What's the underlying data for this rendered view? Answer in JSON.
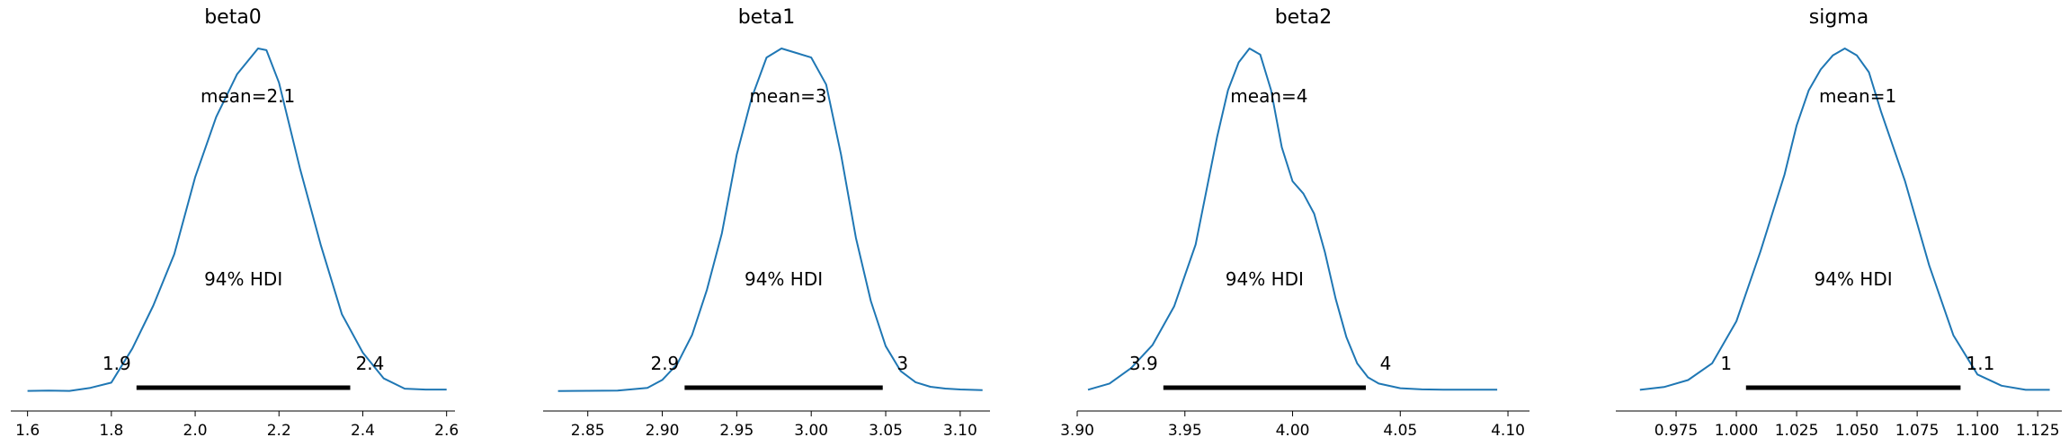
{
  "chart_data": [
    {
      "type": "line",
      "title": "beta0",
      "mean_label": "mean=2.1",
      "hdi_label": "94% HDI",
      "hdi": [
        1.86,
        2.37
      ],
      "hdi_labels": [
        "1.9",
        "2.4"
      ],
      "xlim": [
        1.56,
        2.62
      ],
      "ticks": [
        1.6,
        1.8,
        2.0,
        2.2,
        2.4,
        2.6
      ],
      "tick_labels": [
        "1.6",
        "1.8",
        "2.0",
        "2.2",
        "2.4",
        "2.6"
      ],
      "x": [
        1.6,
        1.65,
        1.7,
        1.75,
        1.8,
        1.85,
        1.9,
        1.95,
        2.0,
        2.05,
        2.1,
        2.15,
        2.17,
        2.2,
        2.25,
        2.3,
        2.35,
        2.4,
        2.45,
        2.5,
        2.55,
        2.6
      ],
      "density": [
        0.004,
        0.008,
        0.004,
        0.04,
        0.1,
        0.5,
        1.0,
        1.6,
        2.5,
        3.2,
        3.7,
        4.0,
        3.98,
        3.6,
        2.6,
        1.7,
        0.9,
        0.45,
        0.15,
        0.03,
        0.02,
        0.02
      ]
    },
    {
      "type": "line",
      "title": "beta1",
      "mean_label": "mean=3",
      "hdi_label": "94% HDI",
      "hdi": [
        2.915,
        3.048
      ],
      "hdi_labels": [
        "2.9",
        "3"
      ],
      "xlim": [
        2.82,
        3.12
      ],
      "ticks": [
        2.85,
        2.9,
        2.95,
        3.0,
        3.05,
        3.1
      ],
      "tick_labels": [
        "2.85",
        "2.90",
        "2.95",
        "3.00",
        "3.05",
        "3.10"
      ],
      "x": [
        2.83,
        2.85,
        2.87,
        2.89,
        2.9,
        2.91,
        2.92,
        2.93,
        2.94,
        2.95,
        2.96,
        2.97,
        2.98,
        2.99,
        3.0,
        3.01,
        3.02,
        3.03,
        3.04,
        3.05,
        3.06,
        3.07,
        3.08,
        3.09,
        3.1,
        3.115
      ],
      "density": [
        0.01,
        0.02,
        0.03,
        0.15,
        0.5,
        1.2,
        2.5,
        4.5,
        7.0,
        10.5,
        13.0,
        14.8,
        15.2,
        15.0,
        14.8,
        13.6,
        10.5,
        6.8,
        4.0,
        2.0,
        0.9,
        0.4,
        0.2,
        0.12,
        0.08,
        0.05
      ]
    },
    {
      "type": "line",
      "title": "beta2",
      "mean_label": "mean=4",
      "hdi_label": "94% HDI",
      "hdi": [
        3.94,
        4.034
      ],
      "hdi_labels": [
        "3.9",
        "4"
      ],
      "xlim": [
        3.9,
        4.11
      ],
      "ticks": [
        3.9,
        3.95,
        4.0,
        4.05,
        4.1
      ],
      "tick_labels": [
        "3.90",
        "3.95",
        "4.00",
        "4.05",
        "4.10"
      ],
      "x": [
        3.905,
        3.915,
        3.925,
        3.935,
        3.945,
        3.955,
        3.96,
        3.965,
        3.97,
        3.975,
        3.98,
        3.985,
        3.99,
        3.995,
        4.0,
        4.005,
        4.01,
        4.015,
        4.02,
        4.025,
        4.03,
        4.035,
        4.04,
        4.05,
        4.06,
        4.07,
        4.08,
        4.095
      ],
      "density": [
        0.1,
        0.5,
        1.5,
        3.0,
        5.5,
        9.5,
        13.0,
        16.5,
        19.5,
        21.3,
        22.2,
        21.8,
        19.5,
        15.8,
        13.6,
        12.8,
        11.5,
        9.0,
        6.0,
        3.5,
        1.8,
        0.9,
        0.5,
        0.2,
        0.12,
        0.1,
        0.1,
        0.1
      ]
    },
    {
      "type": "line",
      "title": "sigma",
      "mean_label": "mean=1",
      "hdi_label": "94% HDI",
      "hdi": [
        1.004,
        1.093
      ],
      "hdi_labels": [
        "1",
        "1.1"
      ],
      "xlim": [
        0.95,
        1.135
      ],
      "ticks": [
        0.975,
        1.0,
        1.025,
        1.05,
        1.075,
        1.1,
        1.125
      ],
      "tick_labels": [
        "0.975",
        "1.000",
        "1.025",
        "1.050",
        "1.075",
        "1.100",
        "1.125"
      ],
      "x": [
        0.96,
        0.97,
        0.98,
        0.99,
        1.0,
        1.005,
        1.01,
        1.02,
        1.025,
        1.03,
        1.035,
        1.04,
        1.045,
        1.05,
        1.055,
        1.06,
        1.07,
        1.08,
        1.09,
        1.1,
        1.11,
        1.12,
        1.13
      ],
      "density": [
        0.1,
        0.3,
        0.8,
        2.0,
        5.0,
        7.5,
        10.0,
        15.5,
        19.0,
        21.5,
        23.0,
        24.0,
        24.5,
        24.0,
        22.8,
        20.0,
        15.0,
        9.0,
        4.0,
        1.2,
        0.4,
        0.1,
        0.1
      ]
    }
  ],
  "colors": {
    "curve": "#1f77b4",
    "hdi": "#000000",
    "axis": "#000000"
  }
}
